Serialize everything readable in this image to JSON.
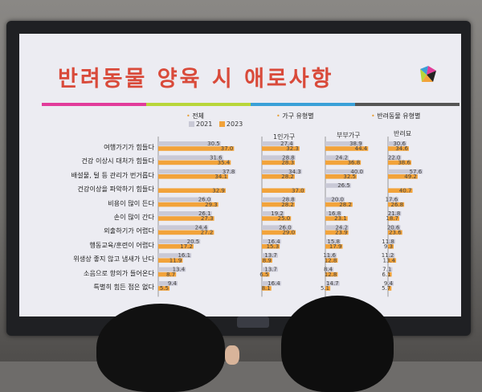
{
  "slide": {
    "title": "반려동물 양육 시 애로사항",
    "stripe_colors": [
      "#e23c9a",
      "#b8d63a",
      "#3aa0d8",
      "#555555"
    ],
    "sections": [
      {
        "label": "전체"
      },
      {
        "label": "가구 유형별"
      },
      {
        "label": "반려동물 유형별"
      }
    ],
    "legend": [
      {
        "label": "2021",
        "color": "#c9c9d6"
      },
      {
        "label": "2023",
        "color": "#f2a33a"
      }
    ],
    "sub_headers": [
      "1인가구",
      "부부가구",
      "반려묘"
    ]
  },
  "chart_data": {
    "type": "bar",
    "orientation": "horizontal",
    "categories": [
      "여행가기가 힘들다",
      "건강 이상시 대처가 힘들다",
      "배설물, 털 등 관리가 번거롭다",
      "건강이상을 파악하기 힘들다",
      "비용이 많이 든다",
      "손이 많이 간다",
      "외출하기가 어렵다",
      "행동교육/훈련이 어렵다",
      "위생상 좋지 않고 냄새가 난다",
      "소음으로 항의가 들어온다",
      "특별히 힘든 점은 없다"
    ],
    "panels": [
      {
        "name": "전체",
        "series": [
          {
            "name": "2021",
            "values": [
              30.5,
              31.6,
              37.8,
              null,
              26.0,
              26.1,
              24.4,
              20.5,
              16.1,
              13.4,
              9.4
            ]
          },
          {
            "name": "2023",
            "values": [
              37.0,
              35.4,
              34.1,
              32.9,
              29.3,
              27.3,
              27.2,
              17.2,
              11.9,
              8.7,
              5.5
            ]
          }
        ]
      },
      {
        "name": "1인가구",
        "series": [
          {
            "name": "2021",
            "values": [
              27.4,
              28.8,
              34.3,
              null,
              28.8,
              19.2,
              26.0,
              16.4,
              13.7,
              13.7,
              16.4
            ]
          },
          {
            "name": "2023",
            "values": [
              32.3,
              28.3,
              28.2,
              37.0,
              28.2,
              25.0,
              29.0,
              15.3,
              8.9,
              6.5,
              8.1
            ]
          }
        ]
      },
      {
        "name": "부부가구",
        "series": [
          {
            "name": "2021",
            "values": [
              38.9,
              24.2,
              40.0,
              26.5,
              20.0,
              16.8,
              24.2,
              15.8,
              11.6,
              8.4,
              14.7
            ]
          },
          {
            "name": "2023",
            "values": [
              44.4,
              36.8,
              32.5,
              null,
              28.2,
              23.1,
              23.9,
              17.9,
              12.8,
              12.8,
              5.1
            ]
          }
        ]
      },
      {
        "name": "반려묘",
        "series": [
          {
            "name": "2021",
            "values": [
              30.6,
              22.0,
              57.6,
              null,
              17.6,
              21.8,
              20.6,
              11.8,
              11.2,
              7.1,
              9.4
            ]
          },
          {
            "name": "2023",
            "values": [
              34.6,
              38.6,
              49.2,
              40.7,
              26.8,
              18.7,
              23.6,
              9.3,
              13.4,
              6.1,
              5.7
            ]
          }
        ]
      }
    ]
  }
}
